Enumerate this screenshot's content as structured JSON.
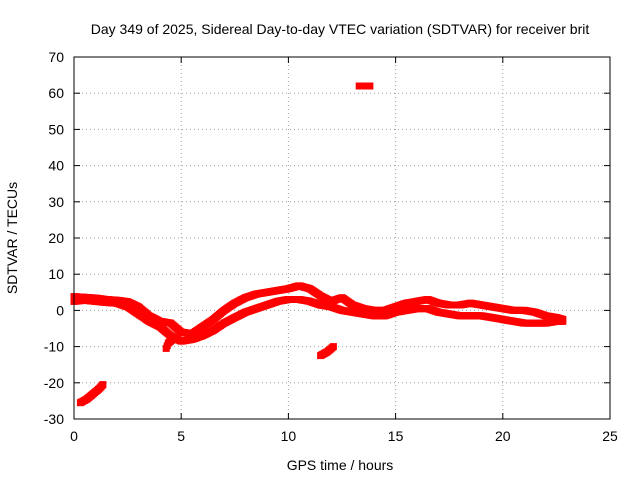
{
  "chart_data": {
    "type": "scatter",
    "title": "Day 349 of 2025, Sidereal Day-to-day VTEC variation (SDTVAR) for receiver brit",
    "xlabel": "GPS time / hours",
    "ylabel": "SDTVAR / TECUs",
    "xlim": [
      0,
      25
    ],
    "ylim": [
      -30,
      70
    ],
    "xticks": [
      0,
      5,
      10,
      15,
      20,
      25
    ],
    "yticks": [
      -30,
      -20,
      -10,
      0,
      10,
      20,
      30,
      40,
      50,
      60,
      70
    ],
    "grid": true,
    "series": [
      {
        "name": "main_band_upper",
        "color": "#ff0000",
        "points": [
          [
            0.0,
            3.8
          ],
          [
            0.5,
            3.6
          ],
          [
            1.0,
            3.4
          ],
          [
            1.5,
            3.0
          ],
          [
            2.0,
            2.8
          ],
          [
            2.5,
            2.4
          ],
          [
            3.0,
            1.0
          ],
          [
            3.5,
            -1.5
          ],
          [
            4.0,
            -3.0
          ],
          [
            4.5,
            -3.5
          ],
          [
            5.0,
            -6.0
          ],
          [
            5.5,
            -6.5
          ],
          [
            6.0,
            -4.5
          ],
          [
            6.5,
            -2.5
          ],
          [
            7.0,
            0.0
          ],
          [
            7.5,
            2.0
          ],
          [
            8.0,
            3.5
          ],
          [
            8.5,
            4.5
          ],
          [
            9.0,
            5.0
          ],
          [
            9.5,
            5.5
          ],
          [
            10.0,
            6.0
          ],
          [
            10.5,
            6.8
          ],
          [
            11.0,
            6.0
          ],
          [
            11.5,
            4.0
          ],
          [
            12.0,
            2.5
          ],
          [
            12.5,
            3.5
          ],
          [
            13.0,
            1.5
          ],
          [
            13.5,
            0.5
          ],
          [
            14.0,
            0.0
          ],
          [
            14.5,
            0.0
          ],
          [
            15.0,
            1.0
          ],
          [
            15.5,
            2.0
          ],
          [
            16.0,
            2.5
          ],
          [
            16.5,
            3.0
          ],
          [
            17.0,
            2.0
          ],
          [
            17.5,
            1.5
          ],
          [
            18.0,
            1.5
          ],
          [
            18.5,
            2.0
          ],
          [
            19.0,
            1.5
          ],
          [
            19.5,
            1.0
          ],
          [
            20.0,
            0.5
          ],
          [
            20.5,
            0.0
          ],
          [
            21.0,
            0.0
          ],
          [
            21.5,
            -0.5
          ],
          [
            22.0,
            -1.5
          ],
          [
            22.5,
            -2.0
          ],
          [
            22.8,
            -2.5
          ]
        ]
      },
      {
        "name": "main_band_lower",
        "color": "#ff0000",
        "points": [
          [
            0.0,
            2.5
          ],
          [
            0.5,
            2.8
          ],
          [
            1.0,
            2.5
          ],
          [
            1.5,
            2.2
          ],
          [
            2.0,
            2.0
          ],
          [
            2.5,
            1.0
          ],
          [
            3.0,
            -1.0
          ],
          [
            3.5,
            -3.0
          ],
          [
            4.0,
            -4.5
          ],
          [
            4.5,
            -7.0
          ],
          [
            5.0,
            -8.5
          ],
          [
            5.5,
            -8.0
          ],
          [
            6.0,
            -7.0
          ],
          [
            6.5,
            -5.5
          ],
          [
            7.0,
            -3.5
          ],
          [
            7.5,
            -2.0
          ],
          [
            8.0,
            -0.5
          ],
          [
            8.5,
            0.5
          ],
          [
            9.0,
            1.5
          ],
          [
            9.5,
            2.5
          ],
          [
            10.0,
            3.0
          ],
          [
            10.5,
            3.0
          ],
          [
            11.0,
            2.5
          ],
          [
            11.5,
            1.5
          ],
          [
            12.0,
            1.0
          ],
          [
            12.5,
            0.0
          ],
          [
            13.0,
            -0.5
          ],
          [
            13.5,
            -1.0
          ],
          [
            14.0,
            -1.5
          ],
          [
            14.5,
            -1.5
          ],
          [
            15.0,
            -0.5
          ],
          [
            15.5,
            0.0
          ],
          [
            16.0,
            0.5
          ],
          [
            16.5,
            0.5
          ],
          [
            17.0,
            -0.5
          ],
          [
            17.5,
            -1.0
          ],
          [
            18.0,
            -1.5
          ],
          [
            18.5,
            -1.5
          ],
          [
            19.0,
            -1.5
          ],
          [
            19.5,
            -2.0
          ],
          [
            20.0,
            -2.5
          ],
          [
            20.5,
            -3.0
          ],
          [
            21.0,
            -3.5
          ],
          [
            21.5,
            -3.5
          ],
          [
            22.0,
            -3.5
          ],
          [
            22.5,
            -3.0
          ],
          [
            22.8,
            -3.0
          ]
        ]
      },
      {
        "name": "outlier_early",
        "color": "#ff0000",
        "points": [
          [
            0.3,
            -25.5
          ],
          [
            0.6,
            -24.5
          ],
          [
            0.9,
            -23.0
          ],
          [
            1.2,
            -21.5
          ],
          [
            1.35,
            -20.5
          ]
        ]
      },
      {
        "name": "outlier_mid",
        "color": "#ff0000",
        "points": [
          [
            11.5,
            -12.5
          ],
          [
            11.8,
            -11.5
          ],
          [
            12.1,
            -10.0
          ]
        ]
      },
      {
        "name": "outlier_high",
        "color": "#ff0000",
        "points": [
          [
            13.3,
            62.0
          ],
          [
            13.6,
            62.0
          ],
          [
            13.8,
            62.0
          ]
        ]
      },
      {
        "name": "dip_short",
        "color": "#ff0000",
        "points": [
          [
            4.3,
            -10.5
          ],
          [
            4.4,
            -9.0
          ],
          [
            4.6,
            -8.0
          ]
        ]
      }
    ]
  }
}
